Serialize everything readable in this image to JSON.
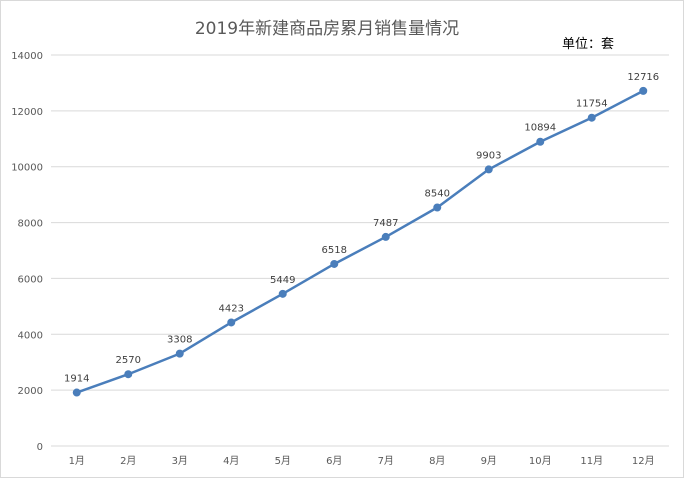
{
  "chart_data": {
    "type": "line",
    "title": "2019年新建商品房累月销售量情况",
    "unit_note": "单位：套",
    "categories": [
      "1月",
      "2月",
      "3月",
      "4月",
      "5月",
      "6月",
      "7月",
      "8月",
      "9月",
      "10月",
      "11月",
      "12月"
    ],
    "values": [
      1914,
      2570,
      3308,
      4423,
      5449,
      6518,
      7487,
      8540,
      9903,
      10894,
      11754,
      12716
    ],
    "ylim": [
      0,
      14000
    ],
    "y_ticks": [
      0,
      2000,
      4000,
      6000,
      8000,
      10000,
      12000,
      14000
    ],
    "grid": true,
    "legend": "none",
    "series_color": "#4a7ebb",
    "gridline_color": "#d9d9d9"
  }
}
